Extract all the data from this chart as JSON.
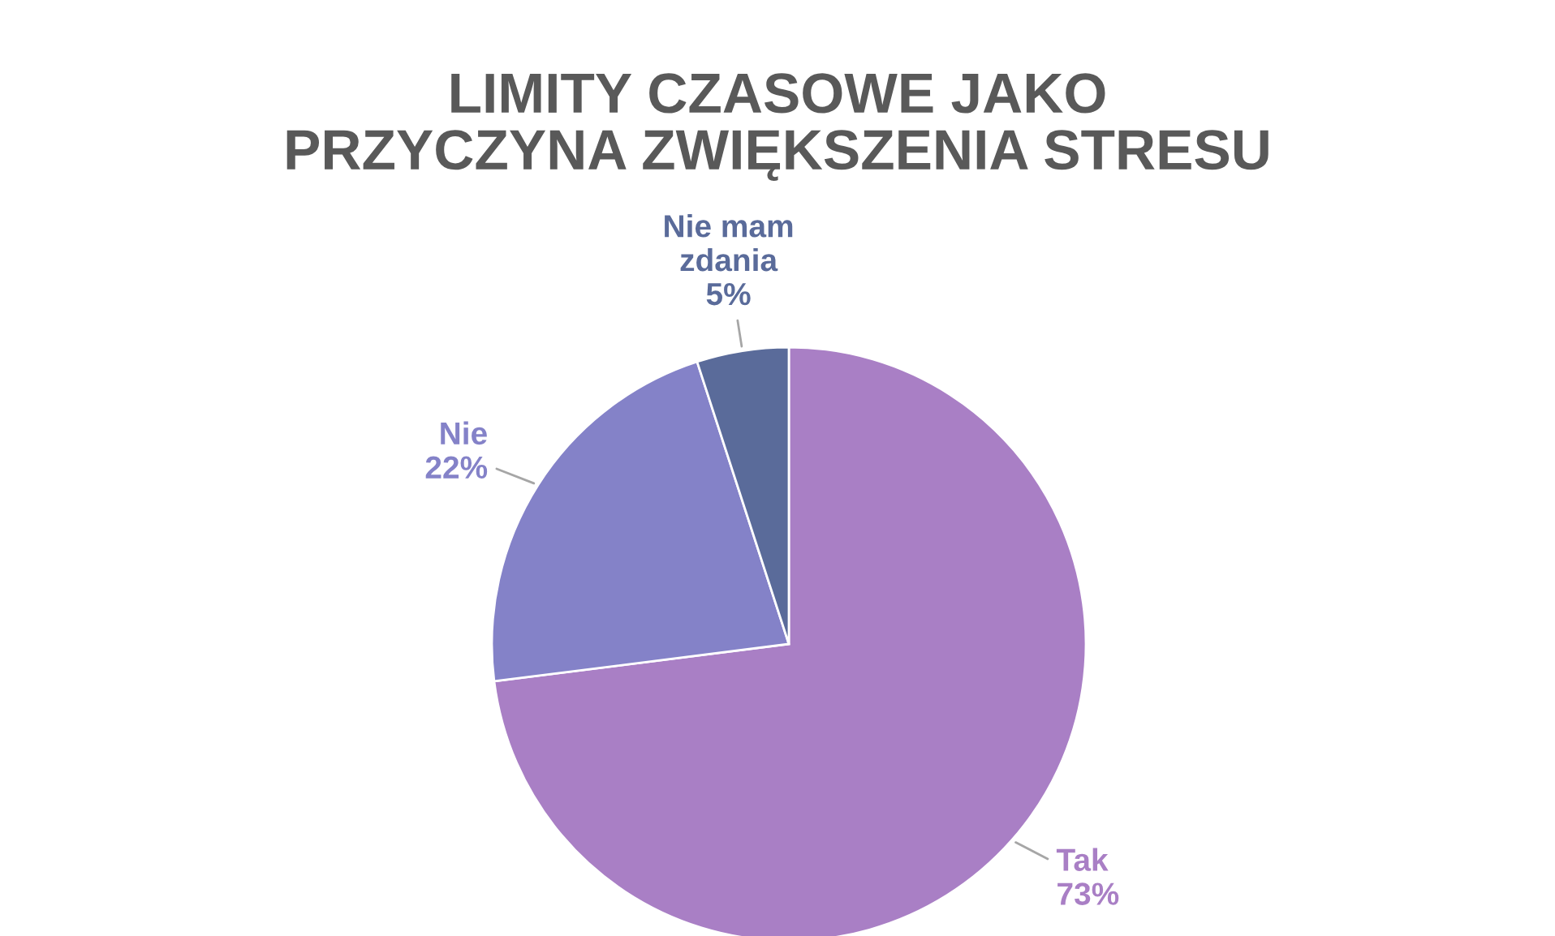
{
  "chart_data": {
    "type": "pie",
    "title": "LIMITY CZASOWE JAKO\nPRZYCZYNA ZWIĘKSZENIA STRESU",
    "categories": [
      "Tak",
      "Nie",
      "Nie mam\nzdania"
    ],
    "values": [
      73,
      22,
      5
    ],
    "value_labels": [
      "73%",
      "22%",
      "5%"
    ],
    "colors": [
      "#a97fc5",
      "#8482c8",
      "#5a6b9a"
    ],
    "legend": false
  }
}
